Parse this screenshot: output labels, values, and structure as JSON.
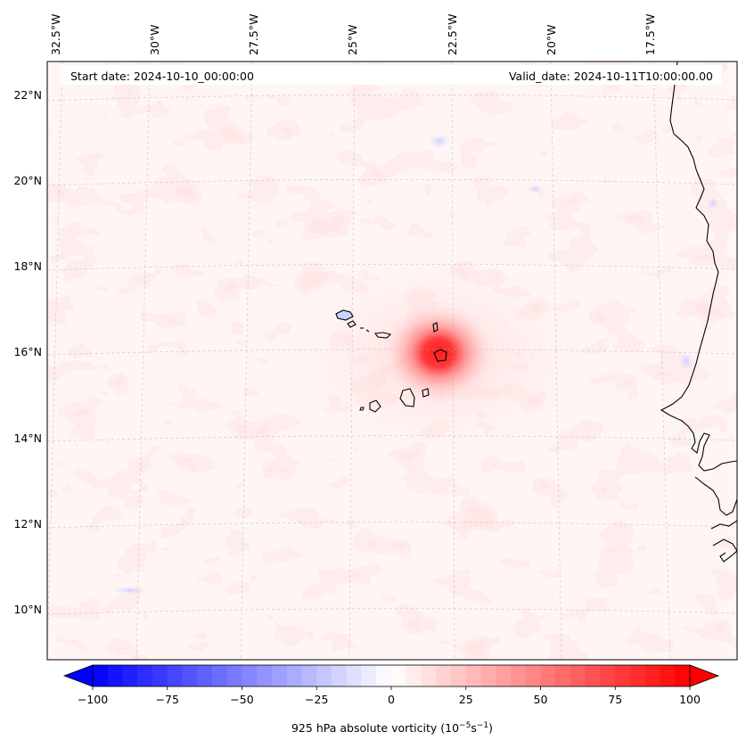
{
  "annotations": {
    "start_date": "Start date: 2024-10-10_00:00:00",
    "valid_date": "Valid_date: 2024-10-11T10:00:00.00"
  },
  "map": {
    "projection": "conic (tilted meridians)",
    "lon_range_deg": [
      -32.7,
      -15.6
    ],
    "lat_range_deg": [
      8.9,
      22.8
    ],
    "gridlines": "on, dashed light gray",
    "lon_labels": [
      "32.5°W",
      "30°W",
      "27.5°W",
      "25°W",
      "22.5°W",
      "20°W",
      "17.5°W"
    ],
    "lat_labels": [
      "22°N",
      "20°N",
      "18°N",
      "16°N",
      "14°N",
      "12°N",
      "10°N"
    ],
    "features": {
      "vortex_center": {
        "lon": -22.8,
        "lat": 15.95,
        "peak_vorticity": 100
      },
      "cape_verde_islands": "outlined in black",
      "african_coastline": "outlined in black, right edge"
    }
  },
  "colorbar": {
    "label": "925 hPa absolute vorticity (10",
    "label_exp1": "−5",
    "label_mid": "s",
    "label_exp2": "−1",
    "label_end": ")",
    "colormap": "bwr",
    "range": [
      -100,
      100
    ],
    "extend": "both",
    "tick_labels": [
      "−100",
      "−75",
      "−50",
      "−25",
      "0",
      "25",
      "50",
      "75",
      "100"
    ],
    "levels": 40
  }
}
